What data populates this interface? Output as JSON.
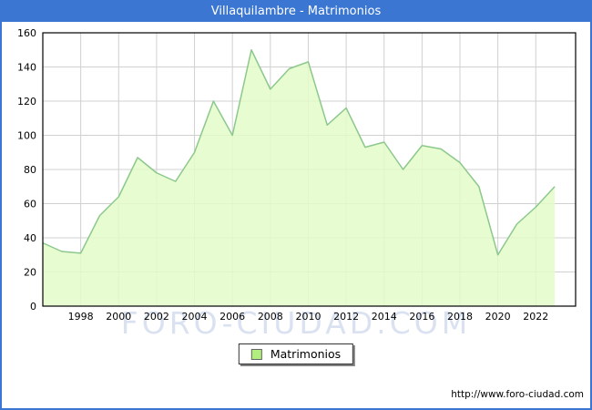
{
  "window": {
    "title": "Villaquilambre - Matrimonios"
  },
  "watermark_text": "FORO-CIUDAD.COM",
  "footer": {
    "url": "http://www.foro-ciudad.com"
  },
  "legend": {
    "label": "Matrimonios"
  },
  "colors": {
    "frame_blue": "#3a76d2",
    "title_text": "#ffffff",
    "area_fill": "#e4fbc9",
    "line": "#8cc88c",
    "grid": "#d0d0d0",
    "plot_border": "#000000",
    "tick_text": "#000000",
    "watermark": "#c3cfe9",
    "legend_swatch": "#b2ee7e"
  },
  "chart_data": {
    "type": "area",
    "title": "Villaquilambre - Matrimonios",
    "xlabel": "",
    "ylabel": "",
    "xlim": [
      1996,
      2024.1
    ],
    "ylim": [
      0,
      160
    ],
    "x_ticks": [
      1998,
      2000,
      2002,
      2004,
      2006,
      2008,
      2010,
      2012,
      2014,
      2016,
      2018,
      2020,
      2022
    ],
    "y_ticks": [
      0,
      20,
      40,
      60,
      80,
      100,
      120,
      140,
      160
    ],
    "grid": true,
    "legend_position": "bottom-center",
    "series": [
      {
        "name": "Matrimonios",
        "x": [
          1996,
          1997,
          1998,
          1999,
          2000,
          2001,
          2002,
          2003,
          2004,
          2005,
          2006,
          2007,
          2008,
          2009,
          2010,
          2011,
          2012,
          2013,
          2014,
          2015,
          2016,
          2017,
          2018,
          2019,
          2020,
          2021,
          2022,
          2023
        ],
        "values": [
          37,
          32,
          31,
          53,
          64,
          87,
          78,
          73,
          90,
          120,
          100,
          150,
          127,
          139,
          143,
          106,
          116,
          93,
          96,
          80,
          94,
          92,
          84,
          70,
          30,
          48,
          58,
          70
        ]
      }
    ]
  }
}
